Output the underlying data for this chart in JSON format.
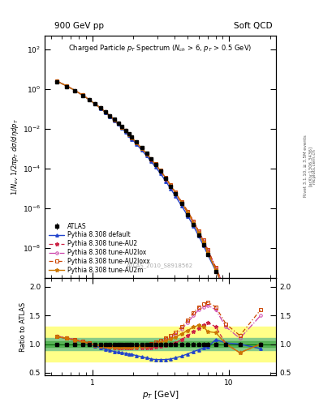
{
  "title_left": "900 GeV pp",
  "title_right": "Soft QCD",
  "plot_title": "Charged Particle $p_T$ Spectrum ($N_{ch}$ > 6, $p_T$ > 0.5 GeV)",
  "xlabel": "$p_T$ [GeV]",
  "ylabel_main": "$1/N_{ev}$ $1/2\\pi p_T$ $d\\sigma/d\\eta dp_T$",
  "ylabel_ratio": "Ratio to ATLAS",
  "annotation": "ATLAS_2010_S8918562",
  "rivet_text": "Rivet 3.1.10, ≥ 3.5M events",
  "arxiv_text": "[arXiv:1306.3436]",
  "mcplots_text": "mcplots.cern.ch",
  "pt_data": [
    0.55,
    0.65,
    0.75,
    0.85,
    0.95,
    1.05,
    1.15,
    1.25,
    1.35,
    1.45,
    1.55,
    1.65,
    1.75,
    1.85,
    1.95,
    2.1,
    2.3,
    2.5,
    2.7,
    2.9,
    3.15,
    3.45,
    3.75,
    4.05,
    4.5,
    5.0,
    5.5,
    6.0,
    6.5,
    7.0,
    8.0,
    9.5,
    12.0,
    17.0
  ],
  "atlas_vals": [
    2.2,
    1.3,
    0.78,
    0.47,
    0.29,
    0.18,
    0.113,
    0.072,
    0.046,
    0.03,
    0.0195,
    0.0128,
    0.0084,
    0.0056,
    0.0037,
    0.00215,
    0.00109,
    0.000565,
    0.0003,
    0.000162,
    7.8e-05,
    3.1e-05,
    1.28e-05,
    5.48e-06,
    1.68e-06,
    4.9e-07,
    1.46e-07,
    4.5e-08,
    1.45e-08,
    4.8e-09,
    6.5e-10,
    5.2e-11,
    1.8e-12,
    1.5e-14
  ],
  "atlas_err_rel": [
    0.025,
    0.025,
    0.025,
    0.025,
    0.025,
    0.025,
    0.025,
    0.028,
    0.022,
    0.027,
    0.027,
    0.025,
    0.025,
    0.027,
    0.027,
    0.028,
    0.028,
    0.028,
    0.028,
    0.028,
    0.03,
    0.03,
    0.03,
    0.031,
    0.032,
    0.031,
    0.032,
    0.031,
    0.032,
    0.031,
    0.031,
    0.031,
    0.036,
    0.04
  ],
  "pythia_default_ratio": [
    1.13,
    1.1,
    1.07,
    1.04,
    1.0,
    0.97,
    0.94,
    0.91,
    0.89,
    0.87,
    0.86,
    0.85,
    0.84,
    0.83,
    0.82,
    0.8,
    0.78,
    0.76,
    0.74,
    0.73,
    0.73,
    0.73,
    0.74,
    0.76,
    0.79,
    0.83,
    0.87,
    0.9,
    0.93,
    0.95,
    1.08,
    1.02,
    1.0,
    0.92
  ],
  "au2_ratio": [
    1.13,
    1.1,
    1.07,
    1.04,
    1.01,
    0.98,
    0.97,
    0.96,
    0.95,
    0.94,
    0.94,
    0.94,
    0.93,
    0.93,
    0.93,
    0.93,
    0.93,
    0.93,
    0.94,
    0.95,
    0.96,
    0.98,
    1.0,
    1.02,
    1.08,
    1.15,
    1.22,
    1.28,
    1.33,
    1.38,
    1.3,
    1.0,
    0.85,
    1.0
  ],
  "au2lox_ratio": [
    1.14,
    1.11,
    1.08,
    1.05,
    1.02,
    0.99,
    0.98,
    0.97,
    0.96,
    0.96,
    0.96,
    0.96,
    0.96,
    0.96,
    0.96,
    0.96,
    0.97,
    0.98,
    0.99,
    1.01,
    1.04,
    1.08,
    1.12,
    1.17,
    1.26,
    1.38,
    1.5,
    1.6,
    1.65,
    1.68,
    1.6,
    1.3,
    1.1,
    1.5
  ],
  "au2loxx_ratio": [
    1.14,
    1.11,
    1.08,
    1.05,
    1.02,
    0.99,
    0.98,
    0.97,
    0.97,
    0.97,
    0.97,
    0.97,
    0.97,
    0.97,
    0.97,
    0.97,
    0.98,
    0.99,
    1.01,
    1.03,
    1.06,
    1.11,
    1.15,
    1.2,
    1.3,
    1.42,
    1.55,
    1.65,
    1.7,
    1.73,
    1.65,
    1.35,
    1.15,
    1.6
  ],
  "au2m_ratio": [
    1.13,
    1.1,
    1.07,
    1.04,
    1.01,
    0.98,
    0.97,
    0.96,
    0.95,
    0.95,
    0.95,
    0.95,
    0.95,
    0.95,
    0.95,
    0.95,
    0.96,
    0.97,
    0.98,
    1.0,
    1.03,
    1.06,
    1.09,
    1.12,
    1.18,
    1.24,
    1.3,
    1.33,
    1.3,
    1.22,
    1.2,
    1.0,
    0.85,
    1.0
  ],
  "bg_color": "#ffffff",
  "atlas_color": "#222222",
  "pythia_default_color": "#2244cc",
  "au2_color": "#cc2244",
  "au2lox_color": "#cc44aa",
  "au2loxx_color": "#cc4400",
  "au2m_color": "#cc7700",
  "xlim": [
    0.45,
    22.0
  ],
  "ylim_main": [
    3e-10,
    500.0
  ],
  "ylim_ratio": [
    0.45,
    2.15
  ],
  "ratio_yticks": [
    0.5,
    1.0,
    1.5,
    2.0
  ]
}
